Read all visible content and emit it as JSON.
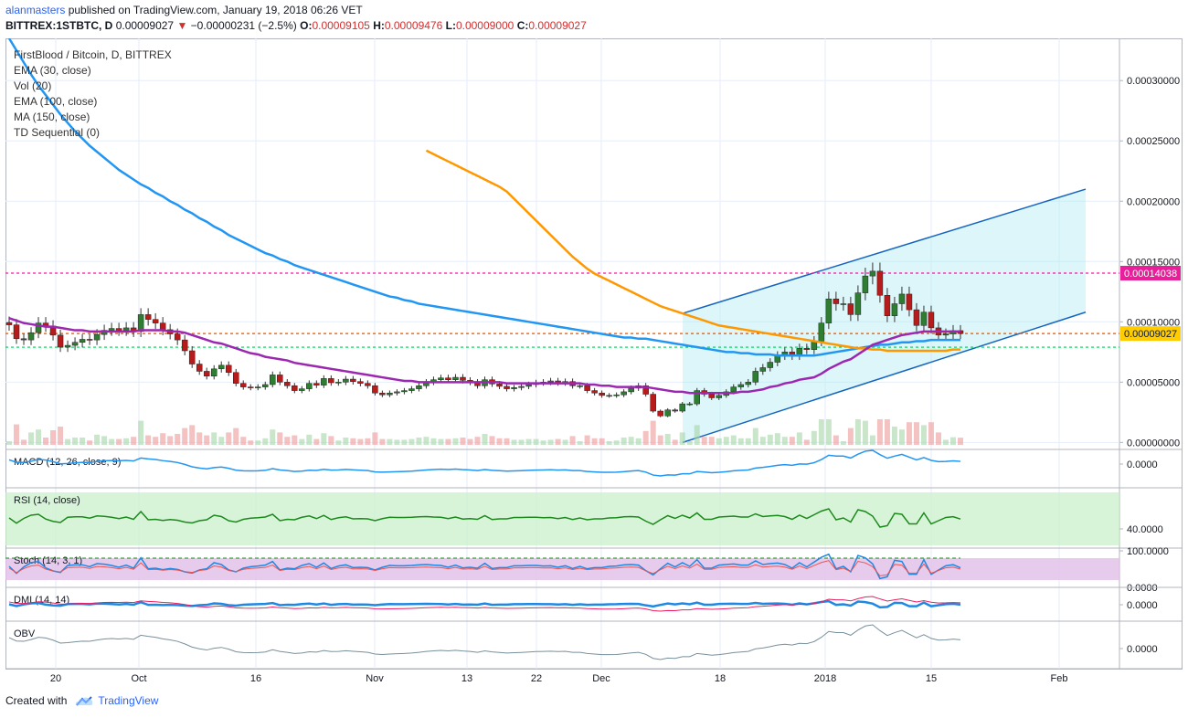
{
  "header": {
    "user": "alanmasters",
    "published": " published on TradingView.com, January 19, 2018 06:26 VET",
    "symbol": "BITTREX:1STBTC, D",
    "last": "0.00009027",
    "change": "−0.00000231 (−2.5%)",
    "o_label": "O:",
    "o": "0.00009105",
    "h_label": "H:",
    "h": "0.00009476",
    "l_label": "L:",
    "l": "0.00009000",
    "c_label": "C:",
    "c": "0.00009027"
  },
  "legend": {
    "title": "FirstBlood / Bitcoin, D, BITTREX",
    "items": [
      "EMA (30, close)",
      "Vol (20)",
      "EMA (100, close)",
      "MA (150, close)",
      "TD Sequential (0)"
    ]
  },
  "colors": {
    "up": "#2e7d32",
    "down": "#b71c1c",
    "ema30": "#9c27b0",
    "ema100": "#2196f3",
    "ma150": "#ff9800",
    "channel": "#1565c0",
    "resistance": "#e91e9a",
    "support_mid": "#e65100",
    "support_low": "#00c853",
    "price_tag": "#ffcc00"
  },
  "chart_data": [
    {
      "type": "line",
      "subtype": "candlestick",
      "title": "FirstBlood / Bitcoin, D, BITTREX",
      "x_ticks": [
        "20",
        "Oct",
        "16",
        "Nov",
        "13",
        "22",
        "Dec",
        "18",
        "2018",
        "15",
        "Feb"
      ],
      "y_ticks": [
        "0.00000000",
        "0.00005000",
        "0.00010000",
        "0.00015000",
        "0.00020000",
        "0.00025000",
        "0.00030000"
      ],
      "ylim": [
        -2e-06,
        0.000335
      ],
      "horizontal_levels": [
        {
          "value": 0.00014038,
          "label": "0.00014038",
          "color": "#e91e9a"
        },
        {
          "value": 9.027e-05,
          "label": "0.00009027",
          "color": "#e65100"
        },
        {
          "value": 7.9e-05,
          "label": "",
          "color": "#00c853"
        }
      ],
      "close": [
        9.75e-05,
        8.6e-05,
        8.5e-05,
        9.1e-05,
        9.9e-05,
        9.65e-05,
        8.9e-05,
        7.9e-05,
        8.05e-05,
        8.3e-05,
        8.55e-05,
        8.5e-05,
        8.95e-05,
        9.3e-05,
        9.45e-05,
        9.3e-05,
        9.5e-05,
        9.2e-05,
        0.000106,
        0.000102,
        9.9e-05,
        9.35e-05,
        9e-05,
        8.5e-05,
        7.6e-05,
        6.5e-05,
        5.9e-05,
        5.5e-05,
        6.1e-05,
        6.4e-05,
        5.8e-05,
        4.9e-05,
        4.6e-05,
        4.55e-05,
        4.6e-05,
        4.8e-05,
        5.6e-05,
        5e-05,
        4.7e-05,
        4.3e-05,
        4.45e-05,
        4.9e-05,
        4.75e-05,
        5.3e-05,
        4.95e-05,
        5e-05,
        5.25e-05,
        5.05e-05,
        4.9e-05,
        4.7e-05,
        4.1e-05,
        3.95e-05,
        4.1e-05,
        4.2e-05,
        4.3e-05,
        4.45e-05,
        4.7e-05,
        5e-05,
        5.2e-05,
        5.35e-05,
        5.2e-05,
        5.4e-05,
        5.15e-05,
        5e-05,
        4.7e-05,
        5.2e-05,
        4.85e-05,
        4.65e-05,
        4.45e-05,
        4.55e-05,
        4.65e-05,
        4.8e-05,
        4.95e-05,
        5e-05,
        5.1e-05,
        4.95e-05,
        5.05e-05,
        4.7e-05,
        4.7e-05,
        4.3e-05,
        4.1e-05,
        3.9e-05,
        3.9e-05,
        3.95e-05,
        4.2e-05,
        4.5e-05,
        4.7e-05,
        4e-05,
        2.6e-05,
        2.2e-05,
        2.7e-05,
        2.6e-05,
        3.2e-05,
        3.2e-05,
        4.3e-05,
        4e-05,
        3.7e-05,
        3.9e-05,
        4.2e-05,
        4.6e-05,
        4.8e-05,
        5e-05,
        5.9e-05,
        6.2e-05,
        6.65e-05,
        7.2e-05,
        7.5e-05,
        7.2e-05,
        7.8e-05,
        7.7e-05,
        8.4e-05,
        9.9e-05,
        0.000119,
        0.000115,
        0.000115,
        0.000106,
        0.000124,
        0.000138,
        0.000142,
        0.000122,
        0.000105,
        0.000115,
        0.000123,
        0.00011,
        9.7e-05,
        0.000108,
        9.5e-05,
        8.9e-05,
        9e-05,
        9.27e-05,
        9.03e-05
      ],
      "ema30": [
        0.000103,
        0.000101,
        9.9e-05,
        9.8e-05,
        9.7e-05,
        9.6e-05,
        9.6e-05,
        9.5e-05,
        9.4e-05,
        9.3e-05,
        9.3e-05,
        9.2e-05,
        9.2e-05,
        9.2e-05,
        9.2e-05,
        9.2e-05,
        9.2e-05,
        9.2e-05,
        9.3e-05,
        9.3e-05,
        9.3e-05,
        9.3e-05,
        9.2e-05,
        9.2e-05,
        9.1e-05,
        8.9e-05,
        8.7e-05,
        8.5e-05,
        8.3e-05,
        8.2e-05,
        8e-05,
        7.8e-05,
        7.6e-05,
        7.4e-05,
        7.3e-05,
        7.1e-05,
        7e-05,
        6.9e-05,
        6.8e-05,
        6.6e-05,
        6.5e-05,
        6.4e-05,
        6.3e-05,
        6.2e-05,
        6.1e-05,
        6e-05,
        5.9e-05,
        5.8e-05,
        5.7e-05,
        5.6e-05,
        5.5e-05,
        5.4e-05,
        5.3e-05,
        5.2e-05,
        5.1e-05,
        5.1e-05,
        5e-05,
        5e-05,
        5e-05,
        5e-05,
        5e-05,
        5e-05,
        5e-05,
        5e-05,
        5e-05,
        5e-05,
        5e-05,
        5e-05,
        4.9e-05,
        4.9e-05,
        4.9e-05,
        4.9e-05,
        4.9e-05,
        4.9e-05,
        4.9e-05,
        4.9e-05,
        4.9e-05,
        4.9e-05,
        4.9e-05,
        4.8e-05,
        4.8e-05,
        4.7e-05,
        4.7e-05,
        4.6e-05,
        4.6e-05,
        4.6e-05,
        4.6e-05,
        4.6e-05,
        4.5e-05,
        4.4e-05,
        4.3e-05,
        4.2e-05,
        4.2e-05,
        4.1e-05,
        4.1e-05,
        4.1e-05,
        4.1e-05,
        4.1e-05,
        4.1e-05,
        4.1e-05,
        4.2e-05,
        4.2e-05,
        4.3e-05,
        4.4e-05,
        4.6e-05,
        4.7e-05,
        4.9e-05,
        5e-05,
        5.2e-05,
        5.3e-05,
        5.4e-05,
        5.7e-05,
        6.1e-05,
        6.4e-05,
        6.7e-05,
        6.9e-05,
        7.3e-05,
        7.7e-05,
        8.1e-05,
        8.3e-05,
        8.5e-05,
        8.7e-05,
        8.9e-05,
        9e-05,
        9.1e-05,
        9.2e-05,
        9.2e-05,
        9.2e-05,
        9.2e-05,
        9.2e-05,
        9.2e-05
      ],
      "ema100": [
        0.000335,
        0.000325,
        0.000315,
        0.000305,
        0.000296,
        0.000288,
        0.00028,
        0.000272,
        0.000265,
        0.000258,
        0.000252,
        0.000246,
        0.000241,
        0.000236,
        0.000231,
        0.000226,
        0.000222,
        0.000218,
        0.000214,
        0.000211,
        0.000207,
        0.000204,
        0.0002,
        0.000197,
        0.000193,
        0.00019,
        0.000186,
        0.000183,
        0.000179,
        0.000176,
        0.000172,
        0.000169,
        0.000166,
        0.000163,
        0.00016,
        0.000157,
        0.000155,
        0.000152,
        0.00015,
        0.000147,
        0.000145,
        0.000143,
        0.000141,
        0.000139,
        0.000137,
        0.000135,
        0.000133,
        0.000131,
        0.000129,
        0.000127,
        0.000125,
        0.000123,
        0.000121,
        0.00012,
        0.000118,
        0.000117,
        0.000115,
        0.000114,
        0.000113,
        0.000112,
        0.000111,
        0.00011,
        0.000109,
        0.000108,
        0.000107,
        0.000106,
        0.000105,
        0.000104,
        0.000103,
        0.000102,
        0.000101,
        0.0001,
        9.9e-05,
        9.8e-05,
        9.7e-05,
        9.6e-05,
        9.5e-05,
        9.4e-05,
        9.3e-05,
        9.2e-05,
        9.1e-05,
        9e-05,
        8.9e-05,
        8.8e-05,
        8.7e-05,
        8.7e-05,
        8.6e-05,
        8.6e-05,
        8.5e-05,
        8.4e-05,
        8.3e-05,
        8.2e-05,
        8.1e-05,
        8e-05,
        7.9e-05,
        7.8e-05,
        7.7e-05,
        7.6e-05,
        7.5e-05,
        7.5e-05,
        7.4e-05,
        7.4e-05,
        7.3e-05,
        7.3e-05,
        7.3e-05,
        7.2e-05,
        7.2e-05,
        7.2e-05,
        7.2e-05,
        7.2e-05,
        7.2e-05,
        7.3e-05,
        7.4e-05,
        7.5e-05,
        7.6e-05,
        7.7e-05,
        7.8e-05,
        7.9e-05,
        8e-05,
        8.1e-05,
        8.1e-05,
        8.2e-05,
        8.3e-05,
        8.3e-05,
        8.4e-05,
        8.4e-05,
        8.5e-05,
        8.5e-05,
        8.5e-05,
        8.5e-05,
        8.5e-05
      ],
      "ma150_start_index": 57,
      "ma150": [
        0.000242,
        0.000239,
        0.000236,
        0.000233,
        0.00023,
        0.000227,
        0.000224,
        0.000221,
        0.000218,
        0.000215,
        0.000212,
        0.000208,
        0.000202,
        0.000196,
        0.00019,
        0.000184,
        0.000178,
        0.000172,
        0.000166,
        0.00016,
        0.000154,
        0.000149,
        0.000144,
        0.00014,
        0.000137,
        0.000134,
        0.000131,
        0.000128,
        0.000125,
        0.000122,
        0.000119,
        0.000116,
        0.000113,
        0.000111,
        0.000109,
        0.000107,
        0.000105,
        0.000103,
        0.000101,
        9.9e-05,
        9.7e-05,
        9.6e-05,
        9.5e-05,
        9.4e-05,
        9.3e-05,
        9.2e-05,
        9.1e-05,
        9e-05,
        8.9e-05,
        8.8e-05,
        8.7e-05,
        8.6e-05,
        8.5e-05,
        8.4e-05,
        8.3e-05,
        8.2e-05,
        8.1e-05,
        8e-05,
        7.9e-05,
        7.8e-05,
        7.8e-05,
        7.7e-05,
        7.7e-05,
        7.6e-05,
        7.6e-05,
        7.6e-05,
        7.6e-05,
        7.6e-05,
        7.6e-05,
        7.6e-05,
        7.6e-05,
        7.6e-05,
        7.7e-05,
        7.7e-05
      ],
      "channel": {
        "upper": [
          [
            0.000107,
            0.000127
          ],
          [
            0.00021,
            0.00018
          ]
        ],
        "lower": [
          [
            0.0,
            0.000127
          ],
          [
            0.000108,
            0.00018
          ]
        ]
      }
    },
    {
      "type": "line",
      "title": "MACD (12, 26, close, 9)",
      "y_ticks": [
        "0.0000"
      ]
    },
    {
      "type": "line",
      "title": "RSI (14, close)",
      "y_ticks": [
        "40.0000"
      ]
    },
    {
      "type": "line",
      "title": "Stoch (14, 3, 1)",
      "y_ticks": [
        "100.0000",
        "0.0000"
      ]
    },
    {
      "type": "line",
      "title": "DMI (14, 14)",
      "y_ticks": [
        "0.0000"
      ]
    },
    {
      "type": "line",
      "title": "OBV",
      "y_ticks": [
        "0.0000"
      ]
    }
  ],
  "footer": {
    "created": "Created with",
    "brand": "TradingView"
  }
}
